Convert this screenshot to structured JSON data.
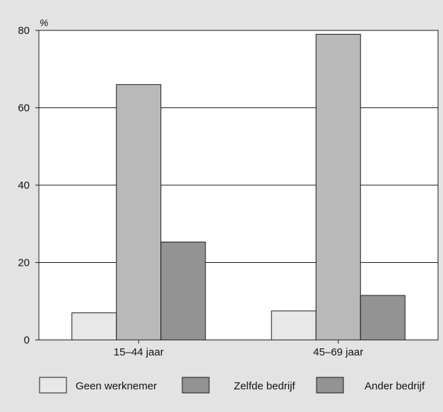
{
  "chart_data": {
    "type": "bar",
    "title": "",
    "xlabel": "",
    "ylabel": "%",
    "ylim": [
      0,
      80
    ],
    "yticks": [
      0,
      20,
      40,
      60,
      80
    ],
    "grid": true,
    "legend_position": "bottom",
    "categories": [
      "15–44 jaar",
      "45–69 jaar"
    ],
    "series": [
      {
        "name": "Geen werknemer",
        "values": [
          7,
          7.5
        ],
        "color": "#e8e8e8"
      },
      {
        "name": "Zelfde bedrijf",
        "values": [
          66,
          79
        ],
        "color": "#b9b9b9"
      },
      {
        "name": "Ander bedrijf",
        "values": [
          25.3,
          11.5
        ],
        "color": "#939393"
      }
    ],
    "legend_swatch_colors": [
      "#e8e8e8",
      "#939393",
      "#939393"
    ]
  }
}
